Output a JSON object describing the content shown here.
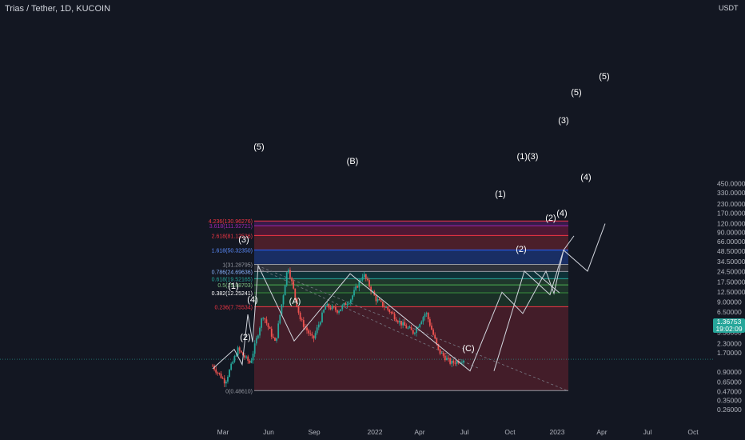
{
  "header": {
    "title": "Trias / Tether, 1D, KUCOIN",
    "price_unit": "USDT"
  },
  "last_price": {
    "value": "1.36753",
    "countdown": "19:02:09"
  },
  "colors": {
    "background": "#131722",
    "up": "#26a69a",
    "down": "#ef5350",
    "wave": "#d1d4dc",
    "fib_red": "#f23645",
    "fib_purple": "#9c27b0",
    "fib_blue": "#2962ff"
  },
  "chart_data": {
    "type": "candlestick",
    "symbol": "TRIAS/USDT",
    "scale": "log",
    "ylim": [
      0.26,
      450
    ],
    "y_ticks": [
      "450.00000",
      "330.00000",
      "230.00000",
      "170.00000",
      "120.00000",
      "90.00000",
      "66.00000",
      "48.50000",
      "34.50000",
      "24.50000",
      "17.50000",
      "12.50000",
      "9.00000",
      "6.50000",
      "4.50000",
      "3.30000",
      "2.30000",
      "1.70000",
      "0.90000",
      "0.65000",
      "0.47000",
      "0.35000",
      "0.26000"
    ],
    "x_ticks": [
      "Mar",
      "Jun",
      "Sep",
      "2022",
      "Apr",
      "Jul",
      "Oct",
      "2023",
      "Apr",
      "Jul",
      "Oct"
    ],
    "fib_levels": [
      {
        "label": "4.236(130.96276)",
        "ratio": 4.236,
        "value": 130.96276
      },
      {
        "label": "3.618(111.92721)",
        "ratio": 3.618,
        "value": 111.92721
      },
      {
        "label": "2.618(81.12536)",
        "ratio": 2.618,
        "value": 81.12536
      },
      {
        "label": "1.618(50.32350)",
        "ratio": 1.618,
        "value": 50.3235
      },
      {
        "label": "1(31.28795)",
        "ratio": 1,
        "value": 31.28795
      },
      {
        "label": "0.786(24.69636)",
        "ratio": 0.786,
        "value": 24.69636
      },
      {
        "label": "0.618(19.52165)",
        "ratio": 0.618,
        "value": 19.52165
      },
      {
        "label": "0.5(15.88703)",
        "ratio": 0.5,
        "value": 15.88703
      },
      {
        "label": "0.382(12.25241)",
        "ratio": 0.382,
        "value": 12.25241
      },
      {
        "label": "0.236(7.75534)",
        "ratio": 0.236,
        "value": 7.75534
      },
      {
        "label": "0(0.48610)",
        "ratio": 0,
        "value": 0.4861
      }
    ],
    "wave_labels": [
      "(1)",
      "(2)",
      "(3)",
      "(4)",
      "(5)",
      "(A)",
      "(B)",
      "(C)",
      "(1)",
      "(2)",
      "(1)(3)",
      "(2)",
      "(4)",
      "(3)",
      "(4)",
      "(5)",
      "(5)"
    ],
    "approx_prices": [
      {
        "x": "Feb 2021",
        "y": 1.1
      },
      {
        "x": "Mar 2021",
        "y": 0.65
      },
      {
        "x": "Apr 2021",
        "y": 1.9
      },
      {
        "x": "Apr 2021",
        "y": 1.2
      },
      {
        "x": "May 2021",
        "y": 6.0
      },
      {
        "x": "May 2021",
        "y": 2.3
      },
      {
        "x": "May 2021",
        "y": 30.0
      },
      {
        "x": "Jun 2021",
        "y": 5.0
      },
      {
        "x": "Jul 2021",
        "y": 2.6
      },
      {
        "x": "Aug 2021",
        "y": 8.0
      },
      {
        "x": "Sep 2021",
        "y": 6.8
      },
      {
        "x": "Oct 2021",
        "y": 10.0
      },
      {
        "x": "Nov 2021",
        "y": 23.0
      },
      {
        "x": "Dec 2021",
        "y": 10.0
      },
      {
        "x": "Jan 2022",
        "y": 7.0
      },
      {
        "x": "Feb 2022",
        "y": 4.5
      },
      {
        "x": "Mar 2022",
        "y": 3.3
      },
      {
        "x": "Apr 2022",
        "y": 6.5
      },
      {
        "x": "May 2022",
        "y": 1.8
      },
      {
        "x": "Jun 2022",
        "y": 1.2
      },
      {
        "x": "Jun 2022",
        "y": 1.37
      }
    ]
  }
}
